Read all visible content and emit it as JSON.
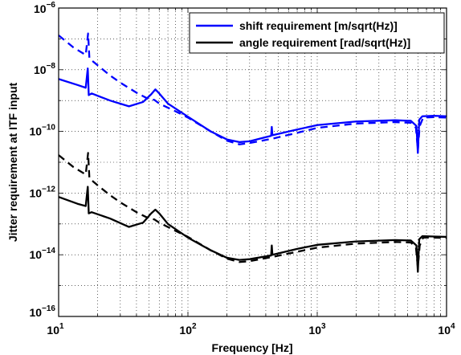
{
  "chart_data": {
    "type": "line",
    "title": "",
    "xlabel": "Frequency [Hz]",
    "ylabel": "Jitter requirement at ITF input",
    "xscale": "log",
    "yscale": "log",
    "xlim": [
      10,
      10000
    ],
    "ylim": [
      1e-16,
      1e-06
    ],
    "grid": "on",
    "legend_position": "top-right",
    "x_tick_labels": [
      {
        "base": "10",
        "exp": "1"
      },
      {
        "base": "10",
        "exp": "2"
      },
      {
        "base": "10",
        "exp": "3"
      },
      {
        "base": "10",
        "exp": "4"
      }
    ],
    "y_tick_labels": [
      {
        "base": "10",
        "exp": "−16"
      },
      {
        "base": "10",
        "exp": "−14"
      },
      {
        "base": "10",
        "exp": "−12"
      },
      {
        "base": "10",
        "exp": "−10"
      },
      {
        "base": "10",
        "exp": "−8"
      },
      {
        "base": "10",
        "exp": "−6"
      }
    ],
    "series": [
      {
        "name": "shift requirement [m/sqrt(Hz)]",
        "color": "#0000ff",
        "style": "solid",
        "points": [
          [
            10,
            5e-09
          ],
          [
            14,
            3.2e-09
          ],
          [
            16.2,
            2.6e-09
          ],
          [
            16.8,
            1.1e-08
          ],
          [
            17.1,
            1.5e-09
          ],
          [
            18,
            1.7e-09
          ],
          [
            25,
            1e-09
          ],
          [
            35,
            6.5e-10
          ],
          [
            45,
            9e-10
          ],
          [
            52,
            1.6e-09
          ],
          [
            56,
            2.3e-09
          ],
          [
            60,
            1.7e-09
          ],
          [
            70,
            8e-10
          ],
          [
            100,
            3e-10
          ],
          [
            150,
            1e-10
          ],
          [
            200,
            5.5e-11
          ],
          [
            250,
            4.5e-11
          ],
          [
            300,
            4.8e-11
          ],
          [
            400,
            6.5e-11
          ],
          [
            440,
            7.2e-11
          ],
          [
            445,
            1.4e-10
          ],
          [
            450,
            7.5e-11
          ],
          [
            700,
            1.15e-10
          ],
          [
            1000,
            1.6e-10
          ],
          [
            2000,
            2.1e-10
          ],
          [
            4000,
            2.3e-10
          ],
          [
            5300,
            2.2e-10
          ],
          [
            5850,
            1.5e-10
          ],
          [
            6000,
            2e-11
          ],
          [
            6150,
            2.4e-10
          ],
          [
            6500,
            3.1e-10
          ],
          [
            8000,
            3.2e-10
          ],
          [
            10000,
            3.1e-10
          ]
        ]
      },
      {
        "name": "",
        "color": "#0000ff",
        "style": "dashed",
        "points": [
          [
            10,
            1.3e-07
          ],
          [
            13,
            5.3e-08
          ],
          [
            16.2,
            3e-08
          ],
          [
            16.9,
            1.5e-07
          ],
          [
            17.3,
            2.3e-08
          ],
          [
            20,
            1.4e-08
          ],
          [
            25,
            6.5e-09
          ],
          [
            30,
            3.8e-09
          ],
          [
            40,
            1.8e-09
          ],
          [
            50,
            1.1e-09
          ],
          [
            55,
            1.05e-09
          ],
          [
            60,
            8e-10
          ],
          [
            80,
            4.5e-10
          ],
          [
            100,
            2.8e-10
          ],
          [
            150,
            1e-10
          ],
          [
            200,
            5e-11
          ],
          [
            250,
            3.8e-11
          ],
          [
            300,
            4.2e-11
          ],
          [
            450,
            5.8e-11
          ],
          [
            700,
            9e-11
          ],
          [
            1000,
            1.3e-10
          ],
          [
            2000,
            1.8e-10
          ],
          [
            4000,
            2e-10
          ],
          [
            5300,
            1.9e-10
          ],
          [
            5800,
            1.3e-10
          ],
          [
            6000,
            2.5e-11
          ],
          [
            6200,
            1.5e-10
          ],
          [
            6600,
            2.8e-10
          ],
          [
            8000,
            2.9e-10
          ],
          [
            10000,
            2.8e-10
          ]
        ]
      },
      {
        "name": "angle requirement [rad/sqrt(Hz)]",
        "color": "#000000",
        "style": "solid",
        "points": [
          [
            10,
            7.5e-13
          ],
          [
            14,
            4.5e-13
          ],
          [
            16.2,
            3.8e-13
          ],
          [
            16.8,
            1.6e-12
          ],
          [
            17.1,
            2.2e-13
          ],
          [
            18,
            2.4e-13
          ],
          [
            25,
            1.5e-13
          ],
          [
            35,
            8e-14
          ],
          [
            45,
            1.1e-13
          ],
          [
            52,
            2.2e-13
          ],
          [
            56,
            2.9e-13
          ],
          [
            60,
            2.2e-13
          ],
          [
            70,
            1e-13
          ],
          [
            100,
            3.6e-14
          ],
          [
            150,
            1.4e-14
          ],
          [
            200,
            8e-15
          ],
          [
            250,
            6.8e-15
          ],
          [
            300,
            7.2e-15
          ],
          [
            440,
            9.5e-15
          ],
          [
            445,
            2e-14
          ],
          [
            450,
            1e-14
          ],
          [
            700,
            1.55e-14
          ],
          [
            1000,
            2.1e-14
          ],
          [
            2000,
            2.7e-14
          ],
          [
            4000,
            3e-14
          ],
          [
            5300,
            2.9e-14
          ],
          [
            5850,
            2e-14
          ],
          [
            6000,
            2.8e-15
          ],
          [
            6150,
            3.2e-14
          ],
          [
            6500,
            4e-14
          ],
          [
            8000,
            3.9e-14
          ],
          [
            10000,
            3.8e-14
          ]
        ]
      },
      {
        "name": "",
        "color": "#000000",
        "style": "dashed",
        "points": [
          [
            10,
            1.7e-11
          ],
          [
            13,
            7e-12
          ],
          [
            16.2,
            4e-12
          ],
          [
            16.9,
            2e-11
          ],
          [
            17.3,
            3e-12
          ],
          [
            20,
            1.8e-12
          ],
          [
            25,
            8.5e-13
          ],
          [
            30,
            5e-13
          ],
          [
            40,
            2.4e-13
          ],
          [
            50,
            1.5e-13
          ],
          [
            55,
            1.4e-13
          ],
          [
            60,
            1.1e-13
          ],
          [
            80,
            6e-14
          ],
          [
            100,
            3.8e-14
          ],
          [
            150,
            1.4e-14
          ],
          [
            200,
            7.5e-15
          ],
          [
            250,
            5.8e-15
          ],
          [
            300,
            6.2e-15
          ],
          [
            450,
            8.5e-15
          ],
          [
            700,
            1.25e-14
          ],
          [
            1000,
            1.7e-14
          ],
          [
            2000,
            2.3e-14
          ],
          [
            4000,
            2.6e-14
          ],
          [
            5300,
            2.5e-14
          ],
          [
            5800,
            1.7e-14
          ],
          [
            6000,
            4e-15
          ],
          [
            6200,
            2e-14
          ],
          [
            6600,
            3.6e-14
          ],
          [
            8000,
            3.6e-14
          ],
          [
            10000,
            3.5e-14
          ]
        ]
      }
    ]
  }
}
